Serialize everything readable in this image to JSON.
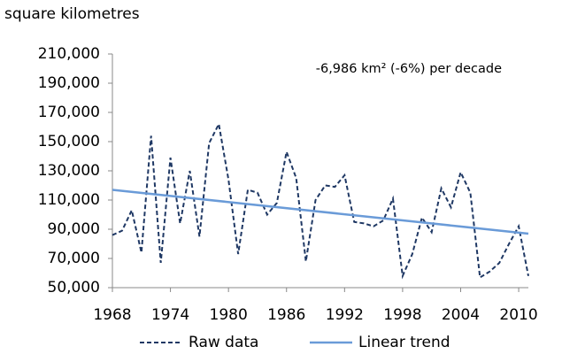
{
  "chart_data": {
    "type": "line",
    "y_label": "square kilometres",
    "annotation": "-6,986 km² (-6%) per decade",
    "x": [
      1968,
      1969,
      1970,
      1971,
      1972,
      1973,
      1974,
      1975,
      1976,
      1977,
      1978,
      1979,
      1980,
      1981,
      1982,
      1983,
      1984,
      1985,
      1986,
      1987,
      1988,
      1989,
      1990,
      1991,
      1992,
      1993,
      1994,
      1995,
      1996,
      1997,
      1998,
      1999,
      2000,
      2001,
      2002,
      2003,
      2004,
      2005,
      2006,
      2007,
      2008,
      2009,
      2010,
      2011
    ],
    "series": [
      {
        "name": "Raw data",
        "color": "#1f3864",
        "dashed": true,
        "values": [
          86000,
          89000,
          103000,
          74000,
          154000,
          67000,
          139000,
          94000,
          130000,
          85000,
          149000,
          162000,
          124000,
          73000,
          117000,
          115000,
          100000,
          108000,
          143000,
          125000,
          68000,
          110000,
          120000,
          119000,
          127000,
          95000,
          94000,
          92000,
          96000,
          111000,
          58000,
          73000,
          98000,
          88000,
          118000,
          105000,
          129000,
          115000,
          57000,
          61000,
          67000,
          80000,
          92000,
          58000
        ]
      },
      {
        "name": "Linear trend",
        "color": "#6a9bd8",
        "dashed": false,
        "x": [
          1968,
          2011
        ],
        "values": [
          117000,
          87000
        ]
      }
    ],
    "xlim": [
      1968,
      2011
    ],
    "xticks": [
      1968,
      1974,
      1980,
      1986,
      1992,
      1998,
      2004,
      2010
    ],
    "ylim": [
      50000,
      210000
    ],
    "yticks": [
      {
        "value": 50000,
        "label": "50,000"
      },
      {
        "value": 70000,
        "label": "70,000"
      },
      {
        "value": 90000,
        "label": "90,000"
      },
      {
        "value": 110000,
        "label": "110,000"
      },
      {
        "value": 130000,
        "label": "130,000"
      },
      {
        "value": 150000,
        "label": "150,000"
      },
      {
        "value": 170000,
        "label": "170,000"
      },
      {
        "value": 190000,
        "label": "190,000"
      },
      {
        "value": 210000,
        "label": "210,000"
      }
    ]
  }
}
